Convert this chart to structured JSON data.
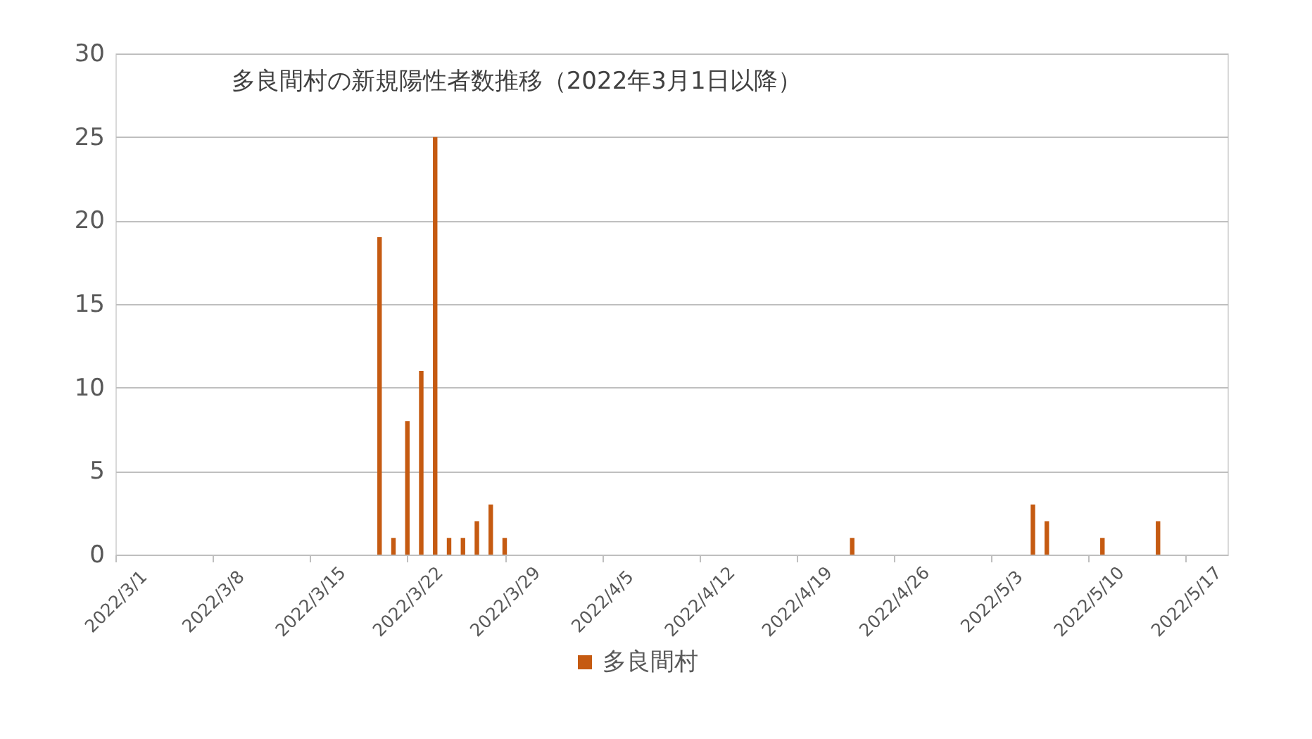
{
  "chart_data": {
    "type": "bar",
    "title": "多良間村の新規陽性者数推移（2022年3月1日以降）",
    "x": [
      "2022-03-20",
      "2022-03-21",
      "2022-03-22",
      "2022-03-23",
      "2022-03-24",
      "2022-03-25",
      "2022-03-26",
      "2022-03-27",
      "2022-03-28",
      "2022-03-29",
      "2022-04-23",
      "2022-05-06",
      "2022-05-07",
      "2022-05-11",
      "2022-05-15"
    ],
    "series": [
      {
        "name": "多良間村",
        "color": "#c55a11",
        "values": [
          19,
          1,
          8,
          11,
          25,
          1,
          1,
          2,
          3,
          1,
          1,
          3,
          2,
          1,
          2
        ]
      }
    ],
    "xlim": [
      "2022-03-01",
      "2022-05-20"
    ],
    "xticks": [
      {
        "value": "2022-03-01",
        "label": "2022/3/1"
      },
      {
        "value": "2022-03-08",
        "label": "2022/3/8"
      },
      {
        "value": "2022-03-15",
        "label": "2022/3/15"
      },
      {
        "value": "2022-03-22",
        "label": "2022/3/22"
      },
      {
        "value": "2022-03-29",
        "label": "2022/3/29"
      },
      {
        "value": "2022-04-05",
        "label": "2022/4/5"
      },
      {
        "value": "2022-04-12",
        "label": "2022/4/12"
      },
      {
        "value": "2022-04-19",
        "label": "2022/4/19"
      },
      {
        "value": "2022-04-26",
        "label": "2022/4/26"
      },
      {
        "value": "2022-05-03",
        "label": "2022/5/3"
      },
      {
        "value": "2022-05-10",
        "label": "2022/5/10"
      },
      {
        "value": "2022-05-17",
        "label": "2022/5/17"
      }
    ],
    "ylim": [
      0,
      30
    ],
    "yticks": [
      0,
      5,
      10,
      15,
      20,
      25,
      30
    ],
    "grid": "y",
    "legend": "bottom"
  }
}
